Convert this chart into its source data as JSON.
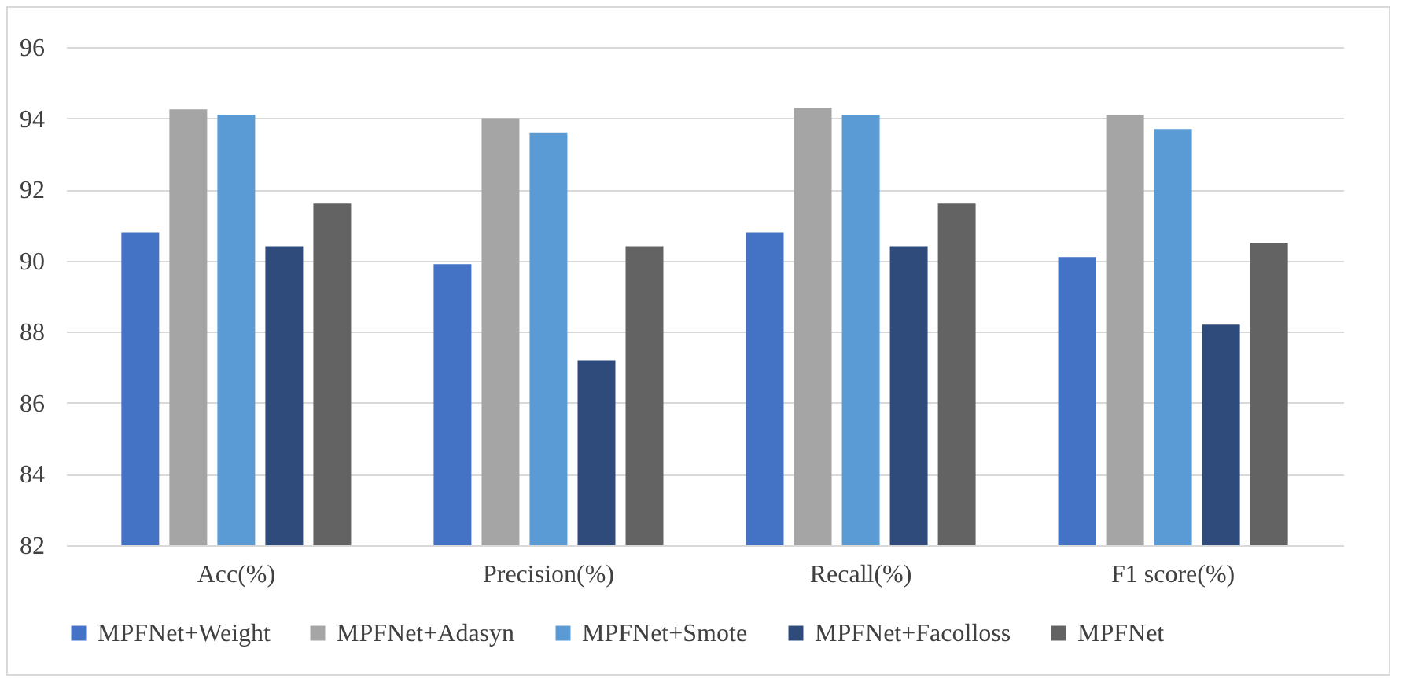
{
  "chart_data": {
    "type": "bar",
    "categories": [
      "Acc(%)",
      "Precision(%)",
      "Recall(%)",
      "F1 score(%)"
    ],
    "series": [
      {
        "name": "MPFNet+Weight",
        "color": "#4472c4",
        "values": [
          90.8,
          89.9,
          90.8,
          90.1
        ]
      },
      {
        "name": "MPFNet+Adasyn",
        "color": "#a5a5a5",
        "values": [
          94.25,
          94.0,
          94.3,
          94.1
        ]
      },
      {
        "name": "MPFNet+Smote",
        "color": "#5b9bd5",
        "values": [
          94.1,
          93.6,
          94.1,
          93.7
        ]
      },
      {
        "name": "MPFNet+Facolloss",
        "color": "#2f4b7c",
        "values": [
          90.4,
          87.2,
          90.4,
          88.2
        ]
      },
      {
        "name": "MPFNet",
        "color": "#636363",
        "values": [
          91.6,
          90.4,
          91.6,
          90.5
        ]
      }
    ],
    "ylim": [
      82,
      96
    ],
    "yticks": [
      82,
      84,
      86,
      88,
      90,
      92,
      94,
      96
    ],
    "grid": "y",
    "legend": "bottom"
  }
}
